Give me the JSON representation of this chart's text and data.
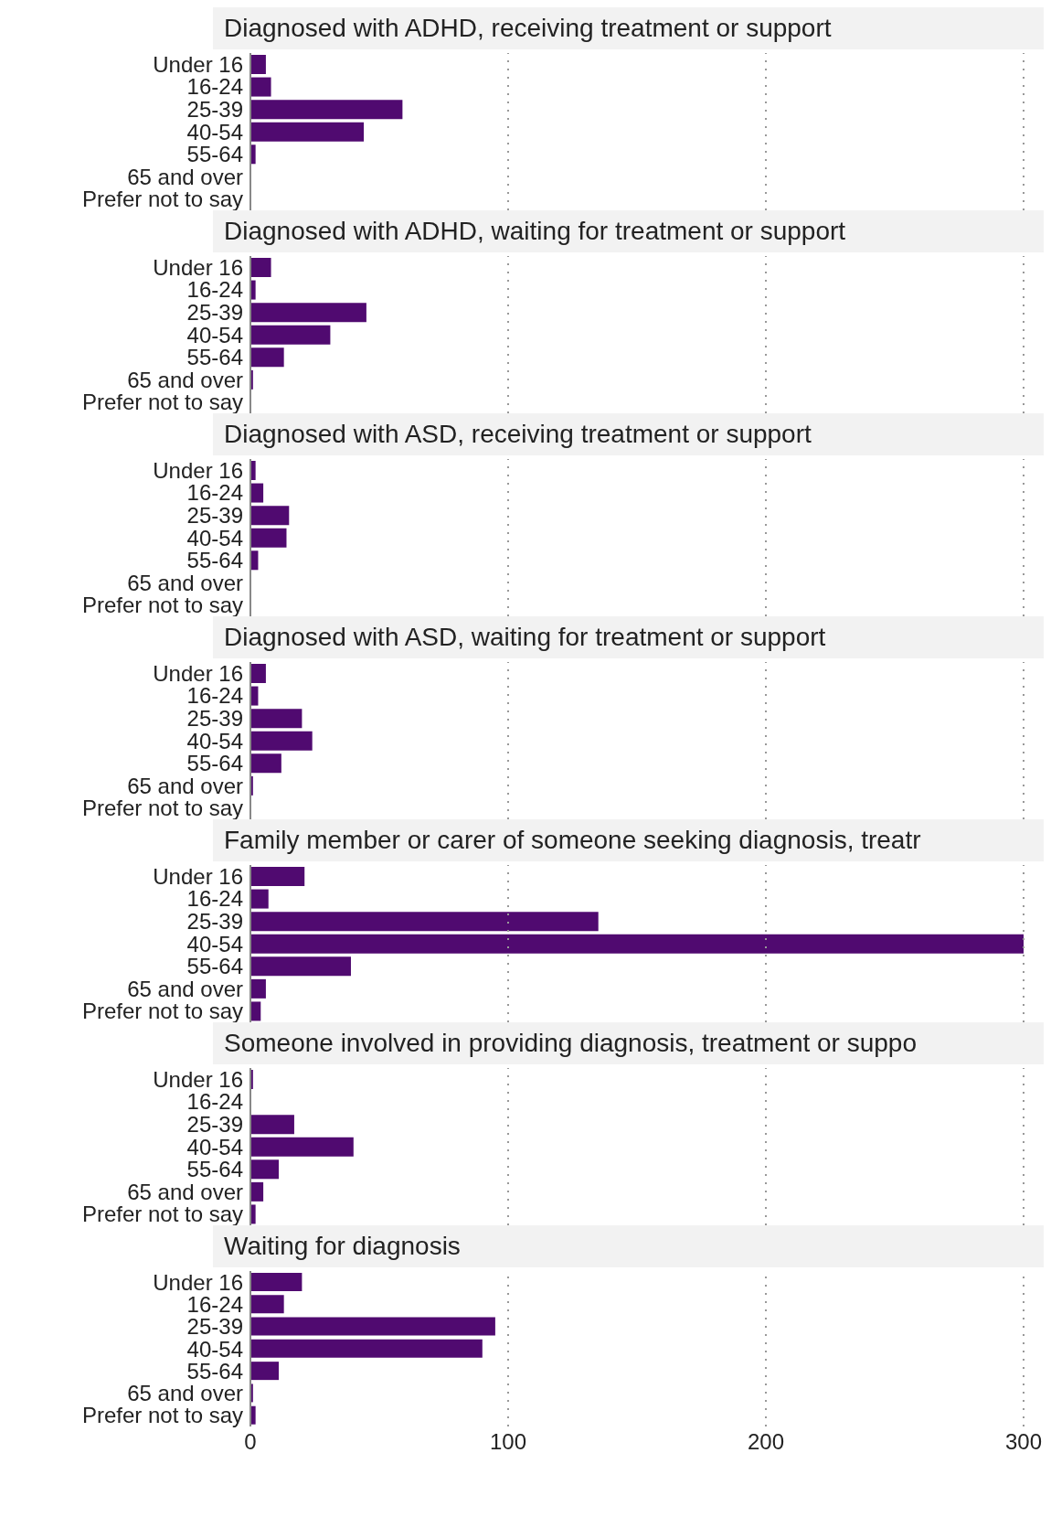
{
  "chart_data": [
    {
      "type": "bar",
      "orientation": "horizontal",
      "title": "Diagnosed with ADHD, receiving treatment or support",
      "categories": [
        "Under 16",
        "16-24",
        "25-39",
        "40-54",
        "55-64",
        "65 and over",
        "Prefer not to say"
      ],
      "values": [
        6,
        8,
        59,
        44,
        2,
        0,
        0
      ],
      "color": "#500a70",
      "xlim": [
        0,
        300
      ],
      "xticks": [
        0,
        100,
        200,
        300
      ],
      "grid": "x",
      "tick_labels": "y"
    },
    {
      "type": "bar",
      "orientation": "horizontal",
      "title": "Diagnosed with ADHD, waiting for treatment or support",
      "categories": [
        "Under 16",
        "16-24",
        "25-39",
        "40-54",
        "55-64",
        "65 and over",
        "Prefer not to say"
      ],
      "values": [
        8,
        2,
        45,
        31,
        13,
        1,
        0
      ],
      "color": "#500a70",
      "xlim": [
        0,
        300
      ],
      "xticks": [
        0,
        100,
        200,
        300
      ],
      "grid": "x",
      "tick_labels": "y"
    },
    {
      "type": "bar",
      "orientation": "horizontal",
      "title": "Diagnosed with ASD, receiving treatment or support",
      "categories": [
        "Under 16",
        "16-24",
        "25-39",
        "40-54",
        "55-64",
        "65 and over",
        "Prefer not to say"
      ],
      "values": [
        2,
        5,
        15,
        14,
        3,
        0,
        0
      ],
      "color": "#500a70",
      "xlim": [
        0,
        300
      ],
      "xticks": [
        0,
        100,
        200,
        300
      ],
      "grid": "x",
      "tick_labels": "y"
    },
    {
      "type": "bar",
      "orientation": "horizontal",
      "title": "Diagnosed with ASD, waiting for treatment or support",
      "categories": [
        "Under 16",
        "16-24",
        "25-39",
        "40-54",
        "55-64",
        "65 and over",
        "Prefer not to say"
      ],
      "values": [
        6,
        3,
        20,
        24,
        12,
        1,
        0
      ],
      "color": "#500a70",
      "xlim": [
        0,
        300
      ],
      "xticks": [
        0,
        100,
        200,
        300
      ],
      "grid": "x",
      "tick_labels": "y"
    },
    {
      "type": "bar",
      "orientation": "horizontal",
      "title": "Family member or carer of someone seeking diagnosis, treatr",
      "categories": [
        "Under 16",
        "16-24",
        "25-39",
        "40-54",
        "55-64",
        "65 and over",
        "Prefer not to say"
      ],
      "values": [
        21,
        7,
        135,
        300,
        39,
        6,
        4
      ],
      "color": "#500a70",
      "xlim": [
        0,
        300
      ],
      "xticks": [
        0,
        100,
        200,
        300
      ],
      "grid": "x",
      "tick_labels": "y"
    },
    {
      "type": "bar",
      "orientation": "horizontal",
      "title": "Someone involved in providing diagnosis, treatment or suppo",
      "categories": [
        "Under 16",
        "16-24",
        "25-39",
        "40-54",
        "55-64",
        "65 and over",
        "Prefer not to say"
      ],
      "values": [
        1,
        0,
        17,
        40,
        11,
        5,
        2
      ],
      "color": "#500a70",
      "xlim": [
        0,
        300
      ],
      "xticks": [
        0,
        100,
        200,
        300
      ],
      "grid": "x",
      "tick_labels": "y"
    },
    {
      "type": "bar",
      "orientation": "horizontal",
      "title": "Waiting for diagnosis",
      "categories": [
        "Under 16",
        "16-24",
        "25-39",
        "40-54",
        "55-64",
        "65 and over",
        "Prefer not to say"
      ],
      "values": [
        20,
        13,
        95,
        90,
        11,
        1,
        2
      ],
      "color": "#500a70",
      "xlim": [
        0,
        300
      ],
      "xticks": [
        0,
        100,
        200,
        300
      ],
      "grid": "x"
    }
  ]
}
